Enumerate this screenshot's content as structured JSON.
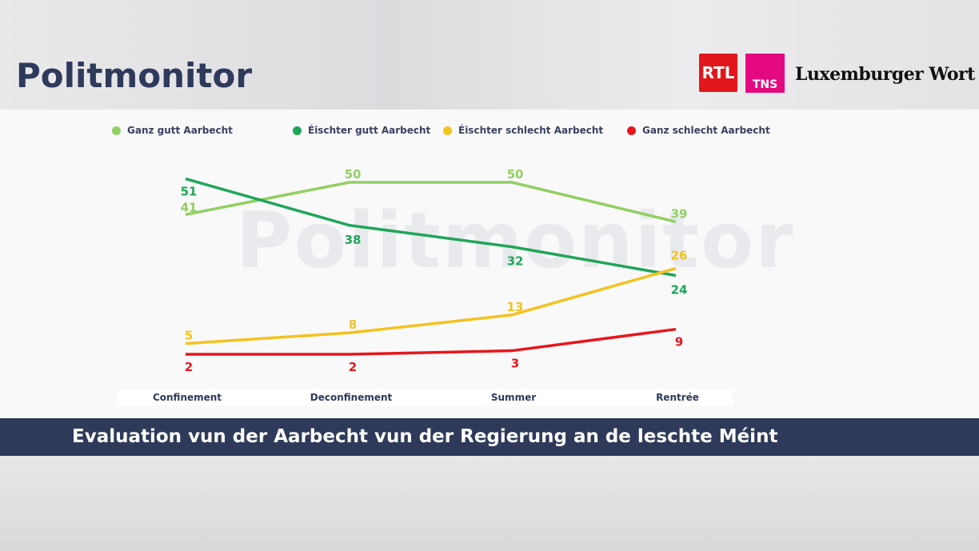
{
  "header": {
    "title": "Politmonitor",
    "logos": [
      "RTL",
      "TNS",
      "Luxemburger Wort"
    ]
  },
  "watermark": "Politmonitor",
  "banner": "Evaluation vun der Aarbecht vun der Regierung an de leschte Méint",
  "chart_data": {
    "type": "line",
    "categories": [
      "Confinement",
      "Deconfinement",
      "Summer",
      "Rentrée"
    ],
    "legend_position": "top",
    "grid": false,
    "series": [
      {
        "name": "Ganz gutt Aarbecht",
        "color": "#92cf62",
        "values": [
          41,
          50,
          50,
          39
        ]
      },
      {
        "name": "Éischter gutt Aarbecht",
        "color": "#1fa659",
        "values": [
          51,
          38,
          32,
          24
        ]
      },
      {
        "name": "Éischter schlecht Aarbecht",
        "color": "#f4c21d",
        "values": [
          5,
          8,
          13,
          26
        ]
      },
      {
        "name": "Ganz schlecht Aarbecht",
        "color": "#e8161b",
        "values": [
          2,
          2,
          3,
          9
        ]
      }
    ]
  }
}
